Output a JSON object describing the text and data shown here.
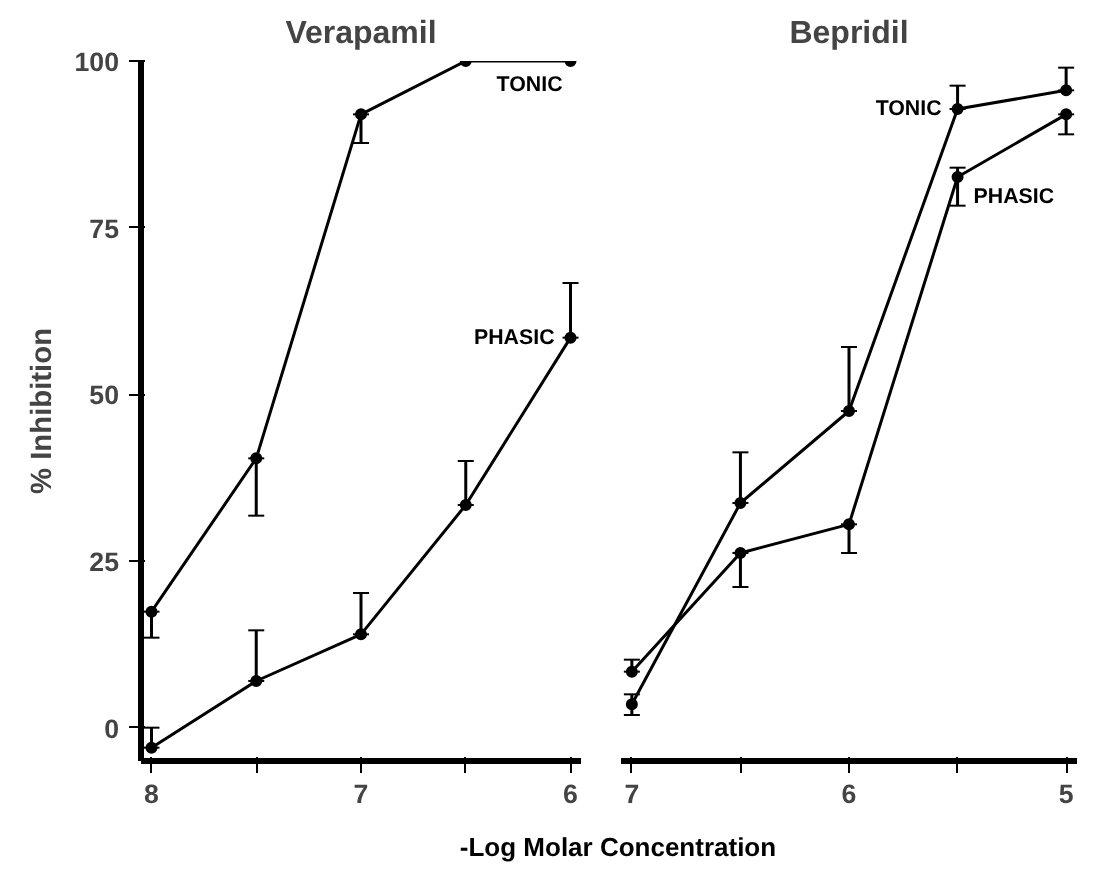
{
  "chart_data": [
    {
      "type": "line",
      "title": "Verapamil",
      "xlabel": "-Log Molar Concentration",
      "ylabel": "% Inhibition",
      "x": [
        8,
        7.5,
        7,
        6.5,
        6
      ],
      "xlim": [
        8.05,
        5.95
      ],
      "xticks": [
        8,
        {
          "value": 7.5,
          "label": null
        },
        7,
        {
          "value": 6.5,
          "label": null
        },
        6
      ],
      "ylim": [
        -5,
        100
      ],
      "yticks": [
        0,
        25,
        50,
        75,
        100
      ],
      "grid": false,
      "marker": "circle",
      "line_style": "solid",
      "series": [
        {
          "name": "TONIC",
          "color": "#000000",
          "values": [
            17.4,
            40.4,
            92,
            100,
            100
          ],
          "errors": [
            [
              13.5,
              17.4
            ],
            [
              31.8,
              40.4
            ],
            [
              87.7,
              92
            ],
            null,
            null
          ]
        },
        {
          "name": "PHASIC",
          "color": "#000000",
          "values": [
            -3,
            7,
            14,
            33.4,
            58.5
          ],
          "errors": [
            [
              -3,
              0
            ],
            [
              7,
              14.6
            ],
            [
              14,
              20.2
            ],
            [
              33.4,
              40
            ],
            [
              58.5,
              66.7
            ]
          ]
        }
      ]
    },
    {
      "type": "line",
      "title": "Bepridil",
      "x": [
        7,
        6.5,
        6,
        5.5,
        5
      ],
      "xlim": [
        7.05,
        4.95
      ],
      "xticks": [
        7,
        {
          "value": 6.5,
          "label": null
        },
        6,
        {
          "value": 5.5,
          "label": null
        },
        5
      ],
      "ylim": [
        -5,
        100
      ],
      "tick_labels": "x",
      "grid": false,
      "marker": "circle",
      "line_style": "solid",
      "series": [
        {
          "name": "TONIC",
          "color": "#000000",
          "values": [
            3.5,
            33.7,
            47.5,
            92.8,
            95.6
          ],
          "errors": [
            [
              1.9,
              5
            ],
            [
              33.7,
              41.3
            ],
            [
              47.5,
              57.1
            ],
            [
              92.8,
              96.3
            ],
            [
              95.6,
              99
            ]
          ]
        },
        {
          "name": "PHASIC",
          "color": "#000000",
          "values": [
            8.4,
            26.2,
            30.5,
            82.6,
            92
          ],
          "errors": [
            [
              8.4,
              10.2
            ],
            [
              21.1,
              26.2
            ],
            [
              26.2,
              30.5
            ],
            [
              78.3,
              84
            ],
            [
              89,
              92
            ]
          ]
        }
      ]
    }
  ]
}
